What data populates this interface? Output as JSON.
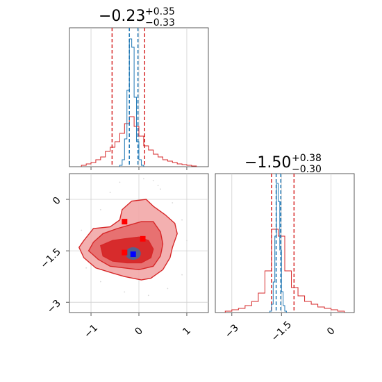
{
  "chart_data": [
    {
      "type": "histogram",
      "panel": "top-left",
      "title": {
        "base": "−0.23",
        "sup": "+0.35",
        "sub": "−0.33"
      },
      "xlim": [
        -1.45,
        1.45
      ],
      "x_ticks": [
        -1,
        0,
        1
      ],
      "grid": true,
      "series": [
        {
          "color": "#d62728",
          "bins_edges": [
            -1.2,
            -1.1,
            -1.0,
            -0.9,
            -0.8,
            -0.7,
            -0.6,
            -0.5,
            -0.4,
            -0.3,
            -0.2,
            -0.1,
            0.0,
            0.1,
            0.2,
            0.3,
            0.4,
            0.5,
            0.6,
            0.7,
            0.8,
            0.9,
            1.0,
            1.1,
            1.2
          ],
          "counts": [
            0.01,
            0.02,
            0.03,
            0.05,
            0.07,
            0.11,
            0.14,
            0.18,
            0.24,
            0.31,
            0.36,
            0.29,
            0.22,
            0.15,
            0.12,
            0.09,
            0.07,
            0.05,
            0.04,
            0.03,
            0.02,
            0.015,
            0.01,
            0.005
          ],
          "quantile_lines": [
            -0.56,
            0.12
          ]
        },
        {
          "color": "#1f77b4",
          "bins_edges": [
            -0.4,
            -0.35,
            -0.3,
            -0.25,
            -0.2,
            -0.15,
            -0.1,
            -0.05,
            0.0,
            0.05,
            0.1
          ],
          "counts": [
            0.01,
            0.05,
            0.2,
            0.55,
            0.92,
            0.86,
            0.5,
            0.18,
            0.05,
            0.01
          ],
          "quantile_lines": [
            -0.2,
            -0.02
          ]
        }
      ]
    },
    {
      "type": "scatter_contour",
      "panel": "bottom-left",
      "xlim": [
        -1.45,
        1.45
      ],
      "ylim": [
        -3.3,
        0.75
      ],
      "x_ticks": [
        -1,
        0,
        1
      ],
      "y_ticks": [
        0.0,
        -1.5,
        -3.0
      ],
      "grid": true,
      "red_markers": [
        [
          -0.3,
          -0.65
        ],
        [
          0.08,
          -1.15
        ],
        [
          -0.3,
          -1.55
        ]
      ],
      "blue_markers": [
        [
          -0.12,
          -1.6
        ]
      ],
      "contours": {
        "outer": [
          [
            -1.15,
            -1.2
          ],
          [
            -0.95,
            -0.85
          ],
          [
            -0.6,
            -0.8
          ],
          [
            -0.4,
            -0.6
          ],
          [
            -0.35,
            -0.3
          ],
          [
            -0.15,
            -0.05
          ],
          [
            0.15,
            0.0
          ],
          [
            0.3,
            -0.2
          ],
          [
            0.55,
            -0.45
          ],
          [
            0.75,
            -0.7
          ],
          [
            0.8,
            -1.0
          ],
          [
            0.7,
            -1.4
          ],
          [
            0.65,
            -1.7
          ],
          [
            0.5,
            -2.05
          ],
          [
            0.25,
            -2.3
          ],
          [
            0.05,
            -2.35
          ],
          [
            -0.3,
            -2.25
          ],
          [
            -0.55,
            -2.15
          ],
          [
            -0.9,
            -2.0
          ],
          [
            -1.15,
            -1.7
          ],
          [
            -1.25,
            -1.4
          ]
        ],
        "mid": [
          [
            -0.95,
            -1.25
          ],
          [
            -0.75,
            -1.0
          ],
          [
            -0.45,
            -0.85
          ],
          [
            -0.2,
            -0.75
          ],
          [
            0.05,
            -0.65
          ],
          [
            0.3,
            -0.65
          ],
          [
            0.45,
            -0.95
          ],
          [
            0.5,
            -1.3
          ],
          [
            0.45,
            -1.65
          ],
          [
            0.3,
            -1.95
          ],
          [
            0.0,
            -2.05
          ],
          [
            -0.3,
            -2.0
          ],
          [
            -0.6,
            -1.95
          ],
          [
            -0.85,
            -1.75
          ],
          [
            -1.05,
            -1.5
          ]
        ],
        "inner": [
          [
            -0.8,
            -1.35
          ],
          [
            -0.55,
            -1.2
          ],
          [
            -0.3,
            -1.15
          ],
          [
            0.0,
            -1.1
          ],
          [
            0.2,
            -1.2
          ],
          [
            0.3,
            -1.45
          ],
          [
            0.25,
            -1.7
          ],
          [
            0.05,
            -1.85
          ],
          [
            -0.25,
            -1.85
          ],
          [
            -0.55,
            -1.8
          ],
          [
            -0.75,
            -1.65
          ]
        ]
      }
    },
    {
      "type": "histogram",
      "panel": "bottom-right",
      "title": {
        "base": "−1.50",
        "sup": "+0.38",
        "sub": "−0.30"
      },
      "xlim": [
        -3.5,
        0.7
      ],
      "x_ticks": [
        -3.0,
        -1.5,
        0.0
      ],
      "grid": true,
      "series": [
        {
          "color": "#d62728",
          "bins_edges": [
            -3.2,
            -3.0,
            -2.8,
            -2.6,
            -2.4,
            -2.2,
            -2.0,
            -1.8,
            -1.6,
            -1.4,
            -1.2,
            -1.0,
            -0.8,
            -0.6,
            -0.4,
            -0.2,
            0.0,
            0.2,
            0.4
          ],
          "counts": [
            0.01,
            0.02,
            0.03,
            0.05,
            0.08,
            0.14,
            0.3,
            0.6,
            0.55,
            0.3,
            0.18,
            0.12,
            0.08,
            0.06,
            0.04,
            0.03,
            0.02,
            0.01
          ],
          "quantile_lines": [
            -1.8,
            -1.12
          ]
        },
        {
          "color": "#1f77b4",
          "bins_edges": [
            -1.85,
            -1.8,
            -1.75,
            -1.7,
            -1.65,
            -1.6,
            -1.55,
            -1.5,
            -1.45,
            -1.4,
            -1.35
          ],
          "counts": [
            0.01,
            0.06,
            0.22,
            0.55,
            0.93,
            0.8,
            0.45,
            0.15,
            0.05,
            0.01
          ],
          "quantile_lines": [
            -1.66,
            -1.52
          ]
        }
      ]
    }
  ]
}
